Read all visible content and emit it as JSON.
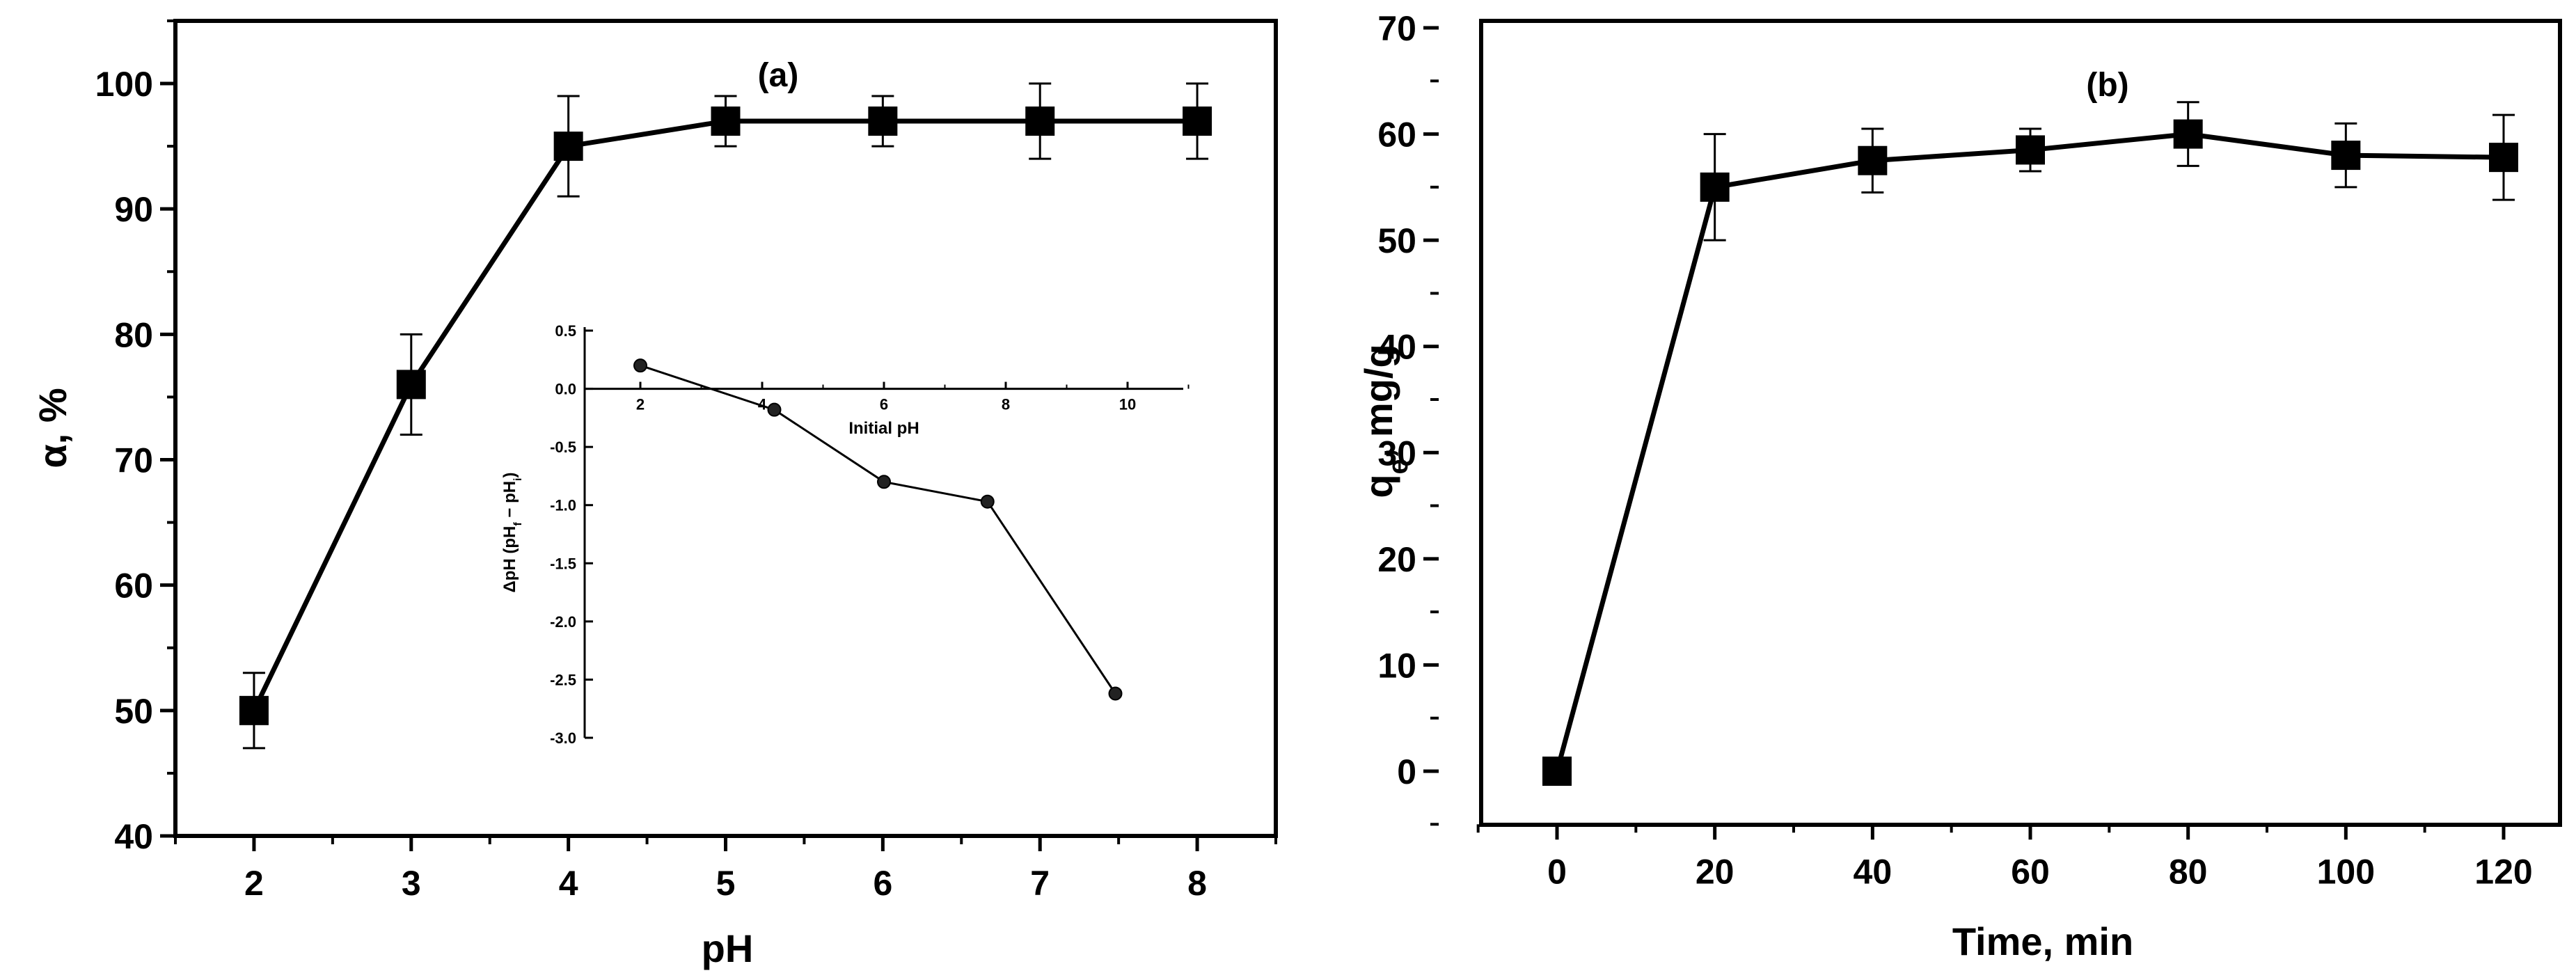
{
  "chart_data": [
    {
      "id": "a",
      "type": "line",
      "panel_label": "(a)",
      "title": "",
      "xlabel": "pH",
      "ylabel": "α, %",
      "xlim": [
        1.5,
        8.5
      ],
      "ylim": [
        40,
        105
      ],
      "xticks": [
        2,
        3,
        4,
        5,
        6,
        7,
        8
      ],
      "yticks": [
        40,
        50,
        60,
        70,
        80,
        90,
        100
      ],
      "grid": false,
      "marker": "square",
      "series": [
        {
          "x": [
            2,
            3,
            4,
            5,
            6,
            7,
            8
          ],
          "y": [
            50,
            76,
            95,
            97,
            97,
            97,
            97
          ],
          "error": [
            3,
            4,
            4,
            2,
            2,
            3,
            3
          ]
        }
      ],
      "inset": {
        "type": "line",
        "xlabel": "Initial pH",
        "ylabel": "ΔpH (pH",
        "ylabel_sub1": "f",
        "ylabel_mid": " − pH",
        "ylabel_sub2": "i",
        "ylabel_end": ")",
        "xlim": [
          0.5,
          11.2
        ],
        "ylim": [
          -3.0,
          0.5
        ],
        "xticks": [
          2,
          4,
          6,
          8,
          10
        ],
        "yticks": [
          "0.5",
          "0.0",
          "-0.5",
          "-1.0",
          "-1.5",
          "-2.0",
          "-2.5",
          "-3.0"
        ],
        "marker": "circle",
        "series": [
          {
            "x": [
              2,
              4.2,
              6,
              7.7,
              9.8
            ],
            "y": [
              0.2,
              -0.18,
              -0.8,
              -0.97,
              -2.62
            ]
          }
        ]
      }
    },
    {
      "id": "b",
      "type": "line",
      "panel_label": "(b)",
      "title": "",
      "xlabel": "Time, min",
      "ylabel": "q",
      "ylabel_sub": "e",
      "ylabel_rest": ", mg/g",
      "xlim": [
        -15,
        130
      ],
      "ylim": [
        -5,
        70
      ],
      "xticks": [
        0,
        20,
        40,
        60,
        80,
        100,
        120
      ],
      "yticks": [
        0,
        10,
        20,
        30,
        40,
        50,
        60,
        70
      ],
      "grid": false,
      "marker": "square",
      "series": [
        {
          "x": [
            0,
            20,
            40,
            60,
            80,
            100,
            120
          ],
          "y": [
            0,
            55,
            57.5,
            58.5,
            60,
            58,
            57.8
          ],
          "error": [
            0,
            5,
            3,
            2,
            3,
            3,
            4
          ]
        }
      ]
    }
  ]
}
